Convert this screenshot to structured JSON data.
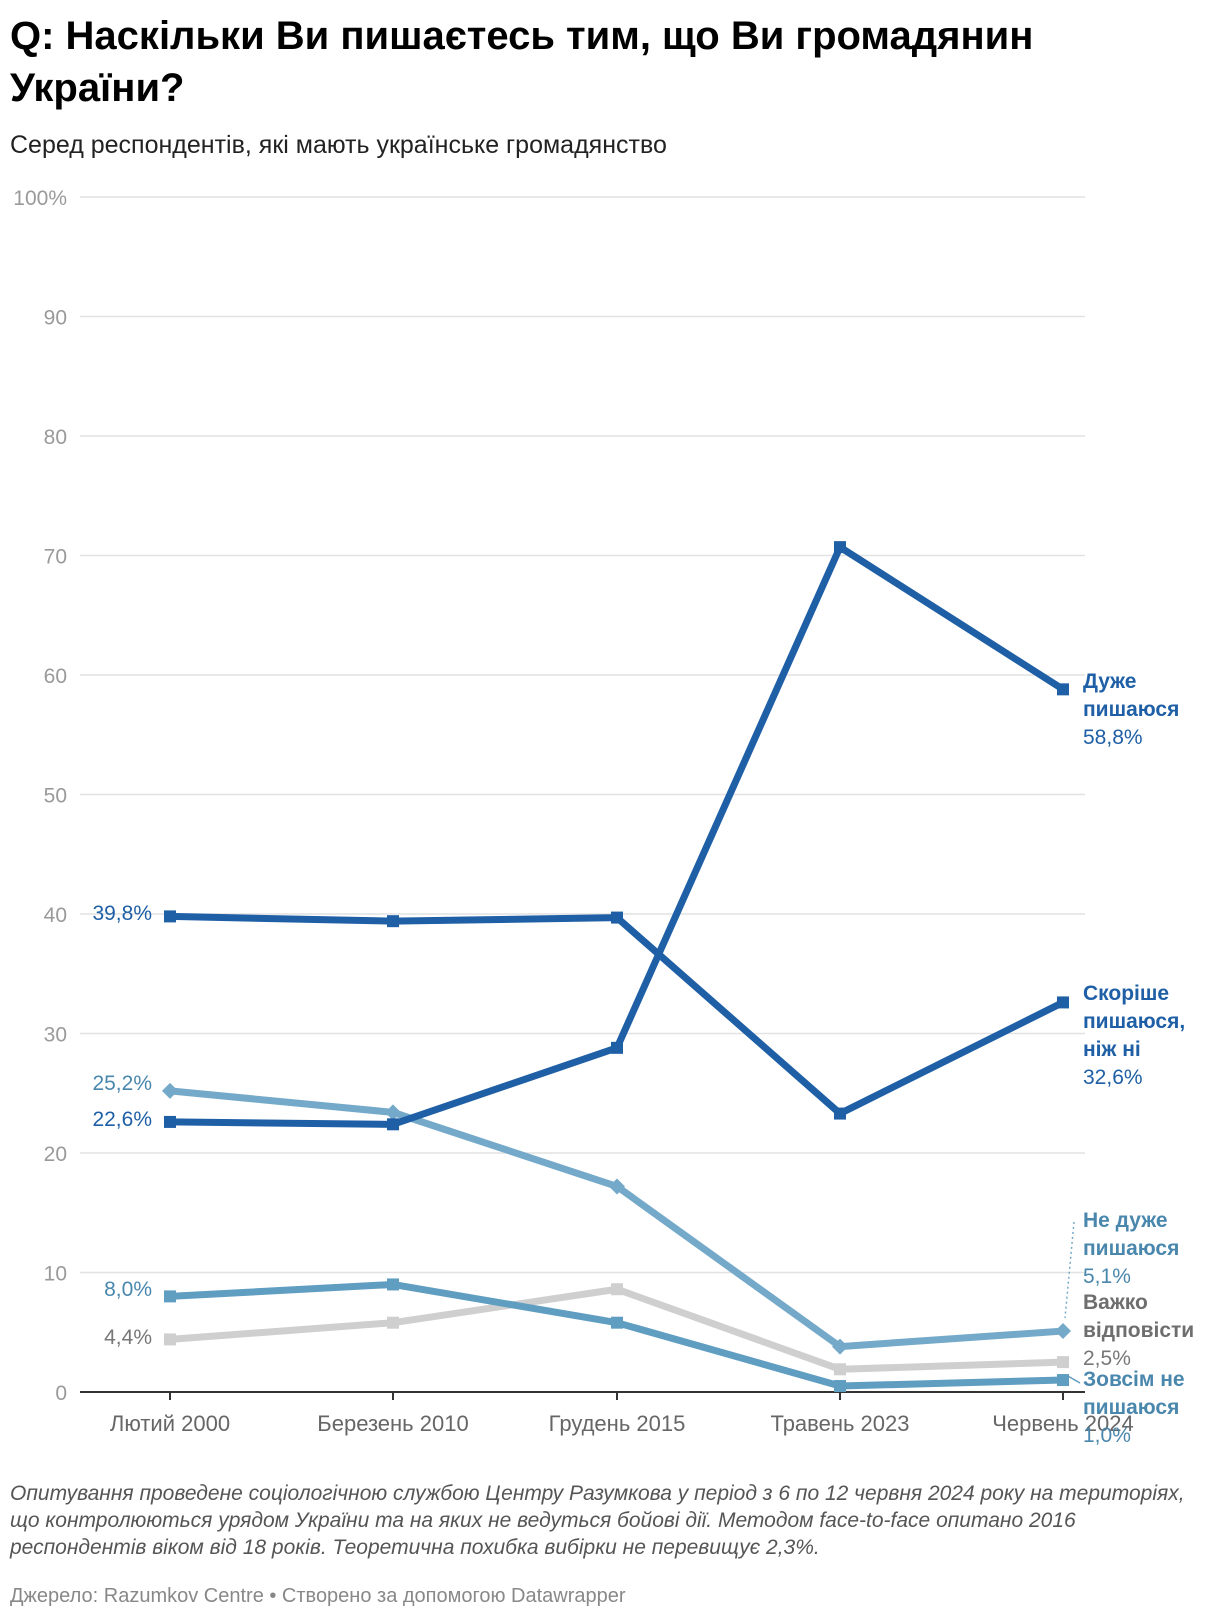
{
  "title": "Q: Наскільки Ви пишаєтесь тим, що Ви громадянин України?",
  "subtitle": "Серед респондентів, які мають українське громадянство",
  "notes": "Опитування проведене соціологічною службою Центру Разумкова у період з 6 по 12 червня 2024 року на територіях, що контролюються урядом України та на яких не ведуться бойові дії. Методом face-to-face опитано 2016 респондентів віком від 18 років. Теоретична похибка вибірки не перевищує 2,3%.",
  "source": "Джерело: Razumkov Centre • Створено за допомогою Datawrapper",
  "chart_data": {
    "type": "line",
    "categories": [
      "Лютий 2000",
      "Березень 2010",
      "Грудень 2015",
      "Травень 2023",
      "Червень 2024"
    ],
    "ylim": [
      0,
      100
    ],
    "yticks": [
      0,
      10,
      20,
      30,
      40,
      50,
      60,
      70,
      80,
      90,
      100
    ],
    "ytick_labels": [
      "0",
      "10",
      "20",
      "30",
      "40",
      "50",
      "60",
      "70",
      "80",
      "90",
      "100%"
    ],
    "grid": true,
    "series": [
      {
        "name_lines": [
          "Дуже",
          "пишаюся"
        ],
        "end_label": "58,8%",
        "start_label": "22,6%",
        "values": [
          22.6,
          22.4,
          28.8,
          70.7,
          58.8
        ],
        "color": "#1f5fa6",
        "marker": "square"
      },
      {
        "name_lines": [
          "Скоріше",
          "пишаюся,",
          "ніж ні"
        ],
        "end_label": "32,6%",
        "start_label": "39,8%",
        "values": [
          39.8,
          39.4,
          39.7,
          23.3,
          32.6
        ],
        "color": "#1f5fa6",
        "marker": "square"
      },
      {
        "name_lines": [
          "Не дуже",
          "пишаюся"
        ],
        "end_label": "5,1%",
        "start_label": "25,2%",
        "values": [
          25.2,
          23.4,
          17.2,
          3.8,
          5.1
        ],
        "color": "#74a9c9",
        "marker": "diamond"
      },
      {
        "name_lines": [
          "Важко",
          "відповісти"
        ],
        "end_label": "2,5%",
        "start_label": "4,4%",
        "values": [
          4.4,
          5.8,
          8.6,
          1.9,
          2.5
        ],
        "color": "#cfcfcf",
        "marker": "square"
      },
      {
        "name_lines": [
          "Зовсім не",
          "пишаюся"
        ],
        "end_label": "1,0%",
        "start_label": "8,0%",
        "values": [
          8.0,
          9.0,
          5.8,
          0.5,
          1.0
        ],
        "color": "#5f9dc1",
        "marker": "square"
      }
    ]
  }
}
